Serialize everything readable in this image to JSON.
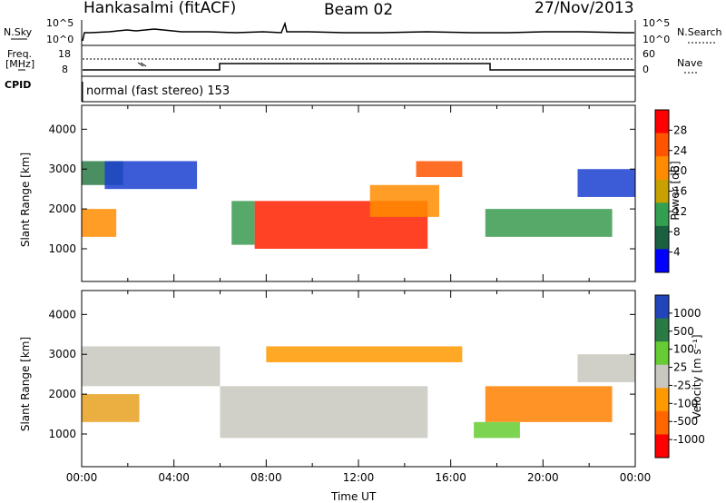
{
  "header": {
    "station": "Hankasalmi (fitACF)",
    "beam": "Beam 02",
    "date": "27/Nov/2013"
  },
  "strip": {
    "nsky_label": "N.Sky",
    "nsky_ticks": [
      "10^5",
      "10^0"
    ],
    "nsearch_label": "N.Search",
    "nsearch_ticks": [
      "10^5",
      "10^0"
    ],
    "freq_label": "Freq.",
    "freq_unit": "[MHz]",
    "freq_ticks": [
      "18",
      "8"
    ],
    "nave_label": "Nave",
    "nave_ticks": [
      "60",
      "0"
    ],
    "cpid_label": "CPID",
    "cpid_value": "normal (fast stereo) 153"
  },
  "chart_data": [
    {
      "type": "heatmap",
      "name": "power-panel",
      "ylabel": "Slant Range [km]",
      "yticks": [
        "4000",
        "3000",
        "2000",
        "1000"
      ],
      "ytick_values": [
        4000,
        3000,
        2000,
        1000
      ],
      "ylim": [
        180,
        4600
      ],
      "xlim": [
        0,
        24
      ],
      "colorbar_label": "Power [dB]",
      "colorbar_ticks": [
        "28",
        "24",
        "20",
        "16",
        "12",
        "8",
        "4"
      ],
      "colorbar_colors": [
        "#ff0000",
        "#ff5500",
        "#ff8c00",
        "#c8a000",
        "#32a050",
        "#1a6040",
        "#0000ff"
      ],
      "regions": [
        {
          "t0": 0.0,
          "t1": 1.8,
          "r0": 2600,
          "r1": 3200,
          "color": "#2a7a45"
        },
        {
          "t0": 0.0,
          "t1": 1.5,
          "r0": 1300,
          "r1": 2000,
          "color": "#ff8c00"
        },
        {
          "t0": 1.0,
          "t1": 5.0,
          "r0": 2500,
          "r1": 3200,
          "color": "#1a3fd0"
        },
        {
          "t0": 6.5,
          "t1": 7.5,
          "r0": 1100,
          "r1": 2200,
          "color": "#3a9a50"
        },
        {
          "t0": 7.5,
          "t1": 15.0,
          "r0": 1000,
          "r1": 2200,
          "color": "#ff2000"
        },
        {
          "t0": 12.5,
          "t1": 15.5,
          "r0": 1800,
          "r1": 2600,
          "color": "#ff8c00"
        },
        {
          "t0": 14.5,
          "t1": 16.5,
          "r0": 2800,
          "r1": 3200,
          "color": "#ff5500"
        },
        {
          "t0": 17.5,
          "t1": 23.0,
          "r0": 1300,
          "r1": 2000,
          "color": "#3a9a50"
        },
        {
          "t0": 21.5,
          "t1": 24.0,
          "r0": 2300,
          "r1": 3000,
          "color": "#1a3fd0"
        }
      ]
    },
    {
      "type": "heatmap",
      "name": "velocity-panel",
      "ylabel": "Slant Range [km]",
      "yticks": [
        "4000",
        "3000",
        "2000",
        "1000"
      ],
      "ytick_values": [
        4000,
        3000,
        2000,
        1000
      ],
      "ylim": [
        180,
        4600
      ],
      "xlim": [
        0,
        24
      ],
      "xlabel": "Time UT",
      "xticks": [
        "00:00",
        "04:00",
        "08:00",
        "12:00",
        "16:00",
        "20:00",
        "00:00"
      ],
      "xtick_values": [
        0,
        4,
        8,
        12,
        16,
        20,
        24
      ],
      "colorbar_label": "Velocity [m s⁻¹]",
      "colorbar_ticks": [
        "1000",
        "500",
        "100",
        "25",
        "-25",
        "-100",
        "-500",
        "-1000"
      ],
      "colorbar_colors": [
        "#2244bb",
        "#2a7a45",
        "#66cc33",
        "#c8c8c0",
        "#ff9900",
        "#ff6600",
        "#ff0000"
      ],
      "regions": [
        {
          "t0": 0.0,
          "t1": 6.0,
          "r0": 2200,
          "r1": 3200,
          "color": "#c8c8c0"
        },
        {
          "t0": 0.0,
          "t1": 2.5,
          "r0": 1300,
          "r1": 2000,
          "color": "#e8a020"
        },
        {
          "t0": 6.0,
          "t1": 15.0,
          "r0": 900,
          "r1": 2200,
          "color": "#c8c8c0"
        },
        {
          "t0": 8.0,
          "t1": 16.5,
          "r0": 2800,
          "r1": 3200,
          "color": "#ff9900"
        },
        {
          "t0": 17.5,
          "t1": 23.0,
          "r0": 1300,
          "r1": 2200,
          "color": "#ff8000"
        },
        {
          "t0": 17.0,
          "t1": 19.0,
          "r0": 900,
          "r1": 1300,
          "color": "#66cc33"
        },
        {
          "t0": 21.5,
          "t1": 24.0,
          "r0": 2300,
          "r1": 3000,
          "color": "#c8c8c0"
        }
      ]
    }
  ]
}
